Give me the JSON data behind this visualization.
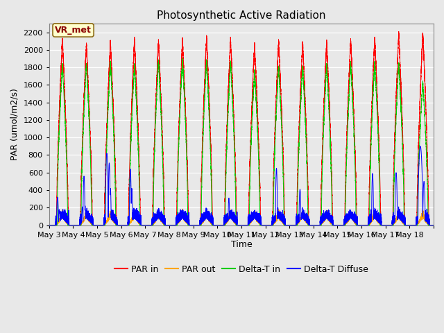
{
  "title": "Photosynthetic Active Radiation",
  "ylabel": "PAR (umol/m2/s)",
  "xlabel": "Time",
  "annotation_text": "VR_met",
  "annotation_bg": "#ffffcc",
  "annotation_border": "#8B6914",
  "legend_labels": [
    "PAR in",
    "PAR out",
    "Delta-T in",
    "Delta-T Diffuse"
  ],
  "legend_colors": [
    "#ff0000",
    "#ffa500",
    "#00cc00",
    "#0000ff"
  ],
  "line_colors": {
    "par_in": "#ff0000",
    "par_out": "#ffa500",
    "delta_t_in": "#00cc00",
    "delta_t_diffuse": "#0000ff"
  },
  "ylim": [
    0,
    2300
  ],
  "yticks": [
    0,
    200,
    400,
    600,
    800,
    1000,
    1200,
    1400,
    1600,
    1800,
    2000,
    2200
  ],
  "n_days": 16,
  "start_day": 3,
  "title_fontsize": 11,
  "axis_fontsize": 9,
  "tick_fontsize": 8,
  "legend_fontsize": 9
}
